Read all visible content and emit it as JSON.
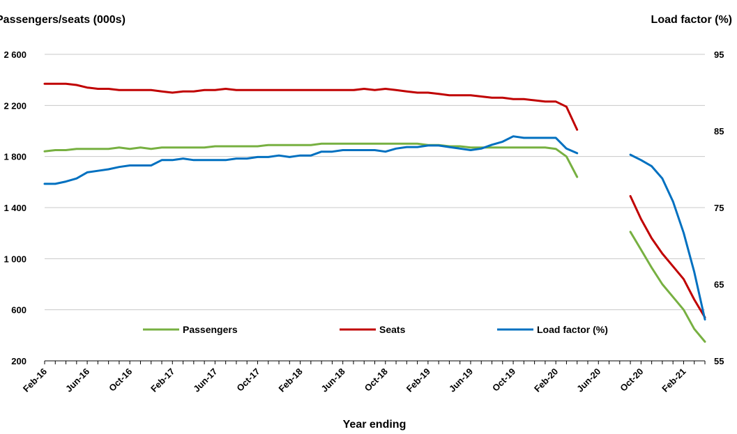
{
  "chart_data": {
    "type": "line",
    "title": "",
    "y_left_label": "Passengers/seats (000s)",
    "y_right_label": "Load factor (%)",
    "xlabel": "Year ending",
    "x_tick_labels": [
      "Feb-16",
      "Jun-16",
      "Oct-16",
      "Feb-17",
      "Jun-17",
      "Oct-17",
      "Feb-18",
      "Jun-18",
      "Oct-18",
      "Feb-19",
      "Jun-19",
      "Oct-19",
      "Feb-20",
      "Jun-20",
      "Oct-20",
      "Feb-21"
    ],
    "y_left_ticks": [
      "200",
      "600",
      "1 000",
      "1 400",
      "1 800",
      "2 200",
      "2 600"
    ],
    "y_right_ticks": [
      "55",
      "65",
      "75",
      "85",
      "95"
    ],
    "y_left_range": [
      200,
      2600
    ],
    "y_right_range": [
      55,
      95
    ],
    "grid": "horizontal",
    "legend_position": "bottom",
    "colors": {
      "Passengers": "#77b041",
      "Seats": "#c00000",
      "Load factor (%)": "#0070c0"
    },
    "series": [
      {
        "name": "Passengers",
        "axis": "left",
        "values": [
          1840,
          1850,
          1850,
          1860,
          1860,
          1860,
          1860,
          1870,
          1860,
          1870,
          1860,
          1870,
          1870,
          1870,
          1870,
          1870,
          1880,
          1880,
          1880,
          1880,
          1880,
          1890,
          1890,
          1890,
          1890,
          1890,
          1900,
          1900,
          1900,
          1900,
          1900,
          1900,
          1900,
          1900,
          1900,
          1900,
          1890,
          1890,
          1880,
          1880,
          1870,
          1870,
          1870,
          1870,
          1870,
          1870,
          1870,
          1870,
          1860,
          1800,
          1640,
          null,
          null,
          null,
          null,
          1210,
          1070,
          930,
          800,
          700,
          600,
          450,
          350
        ]
      },
      {
        "name": "Seats",
        "axis": "left",
        "values": [
          2370,
          2370,
          2370,
          2360,
          2340,
          2330,
          2330,
          2320,
          2320,
          2320,
          2320,
          2310,
          2300,
          2310,
          2310,
          2320,
          2320,
          2330,
          2320,
          2320,
          2320,
          2320,
          2320,
          2320,
          2320,
          2320,
          2320,
          2320,
          2320,
          2320,
          2330,
          2320,
          2330,
          2320,
          2310,
          2300,
          2300,
          2290,
          2280,
          2280,
          2280,
          2270,
          2260,
          2260,
          2250,
          2250,
          2240,
          2230,
          2230,
          2190,
          2010,
          null,
          null,
          null,
          null,
          1490,
          1310,
          1160,
          1040,
          940,
          840,
          680,
          540
        ]
      },
      {
        "name": "Load factor (%)",
        "axis": "right",
        "values": [
          78.1,
          78.1,
          78.4,
          78.8,
          79.6,
          79.8,
          80.0,
          80.3,
          80.5,
          80.5,
          80.5,
          81.2,
          81.2,
          81.4,
          81.2,
          81.2,
          81.2,
          81.2,
          81.4,
          81.4,
          81.6,
          81.6,
          81.8,
          81.6,
          81.8,
          81.8,
          82.3,
          82.3,
          82.5,
          82.5,
          82.5,
          82.5,
          82.3,
          82.7,
          82.9,
          82.9,
          83.1,
          83.1,
          82.9,
          82.7,
          82.5,
          82.7,
          83.2,
          83.6,
          84.3,
          84.1,
          84.1,
          84.1,
          84.1,
          82.7,
          82.1,
          null,
          null,
          null,
          null,
          81.9,
          81.2,
          80.4,
          78.8,
          75.8,
          71.7,
          66.6,
          60.4
        ]
      }
    ]
  }
}
